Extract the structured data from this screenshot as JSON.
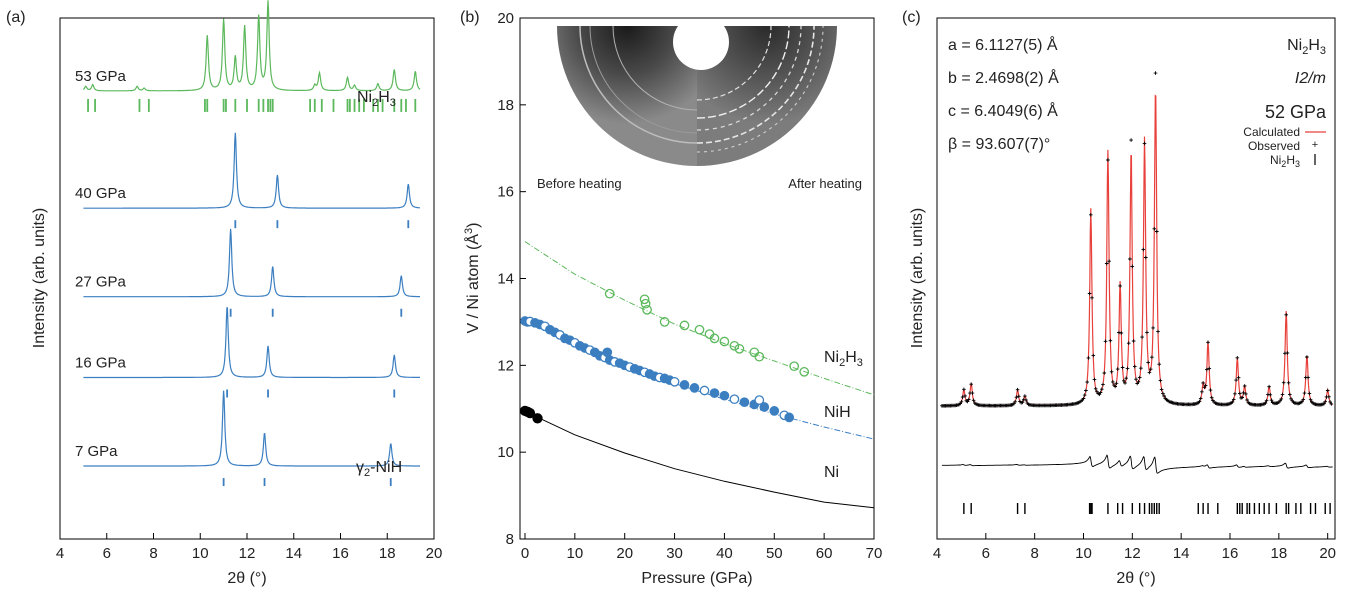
{
  "chart_data": [
    {
      "panel_label": "(a)",
      "type": "line",
      "xlabel": "2θ (°)",
      "ylabel": "Intensity (arb. units)",
      "xlim": [
        4,
        20
      ],
      "x_ticks": [
        4,
        6,
        8,
        10,
        12,
        14,
        16,
        18,
        20
      ],
      "series": [
        {
          "name": "53 GPa",
          "phase_label": "Ni2H3",
          "color": "#5cb85c",
          "baseline": 0.86,
          "peaks": [
            [
              5.1,
              0.05
            ],
            [
              5.4,
              0.07
            ],
            [
              7.3,
              0.05
            ],
            [
              7.6,
              0.03
            ],
            [
              10.3,
              0.62
            ],
            [
              11.0,
              0.8
            ],
            [
              11.5,
              0.37
            ],
            [
              11.9,
              0.72
            ],
            [
              12.5,
              0.83
            ],
            [
              12.9,
              1.0
            ],
            [
              14.9,
              0.06
            ],
            [
              15.1,
              0.2
            ],
            [
              16.3,
              0.15
            ],
            [
              16.6,
              0.06
            ],
            [
              17.6,
              0.08
            ],
            [
              18.3,
              0.24
            ],
            [
              19.2,
              0.22
            ]
          ],
          "ticks": [
            5.2,
            5.5,
            7.4,
            7.8,
            10.2,
            10.3,
            11.0,
            11.1,
            11.5,
            12.0,
            12.5,
            12.7,
            12.9,
            13.0,
            13.1,
            14.7,
            14.9,
            15.2,
            15.7,
            16.3,
            16.4,
            16.6,
            16.8,
            17.0,
            17.4,
            17.6,
            17.8,
            18.3,
            18.6,
            18.8,
            19.2
          ]
        },
        {
          "name": "40 GPa",
          "color": "#3c7fc1",
          "baseline": 0.635,
          "peaks": [
            [
              11.5,
              1.0
            ],
            [
              13.3,
              0.44
            ],
            [
              18.9,
              0.32
            ]
          ],
          "ticks": [
            11.5,
            13.3,
            18.9
          ]
        },
        {
          "name": "27 GPa",
          "color": "#3c7fc1",
          "baseline": 0.465,
          "peaks": [
            [
              11.3,
              0.9
            ],
            [
              13.1,
              0.4
            ],
            [
              18.6,
              0.28
            ]
          ],
          "ticks": [
            11.3,
            13.1,
            18.6
          ]
        },
        {
          "name": "16 GPa",
          "color": "#3c7fc1",
          "baseline": 0.31,
          "peaks": [
            [
              11.15,
              0.95
            ],
            [
              12.9,
              0.42
            ],
            [
              18.3,
              0.3
            ]
          ],
          "ticks": [
            11.15,
            12.9,
            18.3
          ]
        },
        {
          "name": "7 GPa",
          "phase_label": "γ2-NiH",
          "color": "#3c7fc1",
          "baseline": 0.14,
          "peaks": [
            [
              11.0,
              1.0
            ],
            [
              12.75,
              0.44
            ],
            [
              18.15,
              0.3
            ]
          ],
          "ticks": [
            11.0,
            12.75,
            18.15
          ]
        }
      ]
    },
    {
      "panel_label": "(b)",
      "type": "scatter",
      "xlabel": "Pressure (GPa)",
      "ylabel": "V / Ni atom  (Å³)",
      "xlim": [
        -1,
        70
      ],
      "ylim": [
        8,
        20
      ],
      "x_ticks": [
        0,
        10,
        20,
        30,
        40,
        50,
        60,
        70
      ],
      "y_ticks": [
        8,
        10,
        12,
        14,
        16,
        18,
        20
      ],
      "inset": {
        "left_label": "Before heating",
        "right_label": "After heating"
      },
      "series": [
        {
          "name": "Ni2H3",
          "color": "#5cb85c",
          "marker": "open-circle",
          "points": [
            [
              17,
              13.65
            ],
            [
              24,
              13.52
            ],
            [
              24.2,
              13.42
            ],
            [
              24.5,
              13.28
            ],
            [
              28,
              13.0
            ],
            [
              32,
              12.92
            ],
            [
              35,
              12.82
            ],
            [
              37,
              12.72
            ],
            [
              38,
              12.62
            ],
            [
              40,
              12.55
            ],
            [
              42,
              12.45
            ],
            [
              43,
              12.38
            ],
            [
              46,
              12.3
            ],
            [
              47,
              12.2
            ],
            [
              54,
              11.98
            ],
            [
              56,
              11.85
            ]
          ],
          "fit_curve": [
            [
              0,
              14.85
            ],
            [
              10,
              14.1
            ],
            [
              20,
              13.5
            ],
            [
              30,
              12.95
            ],
            [
              40,
              12.5
            ],
            [
              50,
              12.1
            ],
            [
              60,
              11.7
            ],
            [
              70,
              11.32
            ]
          ]
        },
        {
          "name": "NiH",
          "color": "#3c7fc1",
          "marker": "filled-and-open-circle",
          "points": [
            [
              0,
              13.02
            ],
            [
              0.5,
              13.0
            ],
            [
              1,
              13.01
            ],
            [
              2,
              12.98
            ],
            [
              3,
              12.94
            ],
            [
              4,
              12.9
            ],
            [
              5,
              12.82
            ],
            [
              6,
              12.76
            ],
            [
              7,
              12.7
            ],
            [
              8,
              12.62
            ],
            [
              9,
              12.58
            ],
            [
              10,
              12.52
            ],
            [
              11,
              12.45
            ],
            [
              12,
              12.4
            ],
            [
              13,
              12.35
            ],
            [
              14,
              12.3
            ],
            [
              15,
              12.22
            ],
            [
              16,
              12.18
            ],
            [
              16.5,
              12.3
            ],
            [
              17,
              12.12
            ],
            [
              18,
              12.08
            ],
            [
              19,
              12.05
            ],
            [
              20,
              12.0
            ],
            [
              21,
              11.96
            ],
            [
              22,
              11.92
            ],
            [
              23,
              11.88
            ],
            [
              24,
              11.84
            ],
            [
              25,
              11.8
            ],
            [
              26,
              11.75
            ],
            [
              27,
              11.72
            ],
            [
              28,
              11.7
            ],
            [
              29,
              11.66
            ],
            [
              30,
              11.62
            ],
            [
              32,
              11.55
            ],
            [
              34,
              11.48
            ],
            [
              36,
              11.42
            ],
            [
              38,
              11.36
            ],
            [
              40,
              11.3
            ],
            [
              42,
              11.22
            ],
            [
              44,
              11.15
            ],
            [
              46,
              11.1
            ],
            [
              47,
              11.2
            ],
            [
              48,
              11.04
            ],
            [
              50,
              10.95
            ],
            [
              52,
              10.85
            ],
            [
              53,
              10.8
            ]
          ],
          "fit_curve": [
            [
              0,
              13.1
            ],
            [
              10,
              12.5
            ],
            [
              20,
              12.0
            ],
            [
              30,
              11.58
            ],
            [
              40,
              11.22
            ],
            [
              50,
              10.88
            ],
            [
              60,
              10.58
            ],
            [
              70,
              10.3
            ]
          ]
        },
        {
          "name": "Ni",
          "color": "#000000",
          "marker": "filled-circle",
          "points": [
            [
              0,
              10.95
            ],
            [
              0.5,
              10.93
            ],
            [
              1,
              10.9
            ],
            [
              2.5,
              10.78
            ]
          ],
          "fit_curve": [
            [
              0,
              10.94
            ],
            [
              10,
              10.4
            ],
            [
              20,
              9.98
            ],
            [
              30,
              9.62
            ],
            [
              40,
              9.33
            ],
            [
              50,
              9.08
            ],
            [
              60,
              8.85
            ],
            [
              70,
              8.72
            ]
          ]
        }
      ]
    },
    {
      "panel_label": "(c)",
      "type": "line",
      "xlabel": "2θ (°)",
      "ylabel": "Intensity (arb. units)",
      "xlim": [
        4,
        20.3
      ],
      "x_ticks": [
        4,
        6,
        8,
        10,
        12,
        14,
        16,
        18,
        20
      ],
      "lattice": {
        "a": "a = 6.1127(5) Å",
        "b": "b = 2.4698(2) Å",
        "c": "c = 6.4049(6) Å",
        "beta": "β = 93.607(7)°"
      },
      "phase": "Ni2H3",
      "space_group": "I2/m",
      "pressure": "52 GPa",
      "legend": {
        "calculated": "Calculated",
        "observed": "Observed",
        "phase": "Ni2H3"
      },
      "colors": {
        "calculated": "#e8413c",
        "observed": "#000000",
        "difference": "#000000"
      },
      "peaks": [
        [
          5.1,
          0.05
        ],
        [
          5.4,
          0.07
        ],
        [
          7.3,
          0.05
        ],
        [
          7.6,
          0.03
        ],
        [
          10.3,
          0.62
        ],
        [
          11.0,
          0.8
        ],
        [
          11.5,
          0.37
        ],
        [
          11.95,
          0.8
        ],
        [
          12.5,
          0.83
        ],
        [
          12.95,
          1.0
        ],
        [
          14.9,
          0.06
        ],
        [
          15.1,
          0.2
        ],
        [
          16.3,
          0.15
        ],
        [
          16.6,
          0.06
        ],
        [
          17.6,
          0.06
        ],
        [
          18.3,
          0.3
        ],
        [
          19.15,
          0.16
        ],
        [
          20.0,
          0.05
        ]
      ],
      "ticks": [
        5.1,
        5.4,
        7.3,
        7.6,
        10.25,
        10.3,
        10.35,
        11.0,
        11.4,
        11.6,
        12.0,
        12.3,
        12.5,
        12.7,
        12.8,
        12.9,
        13.0,
        13.1,
        14.7,
        14.9,
        15.1,
        15.5,
        16.3,
        16.4,
        16.5,
        16.7,
        16.8,
        17.0,
        17.2,
        17.4,
        17.6,
        17.9,
        18.3,
        18.4,
        18.7,
        18.9,
        19.3,
        19.5,
        19.9,
        20.1
      ]
    }
  ]
}
